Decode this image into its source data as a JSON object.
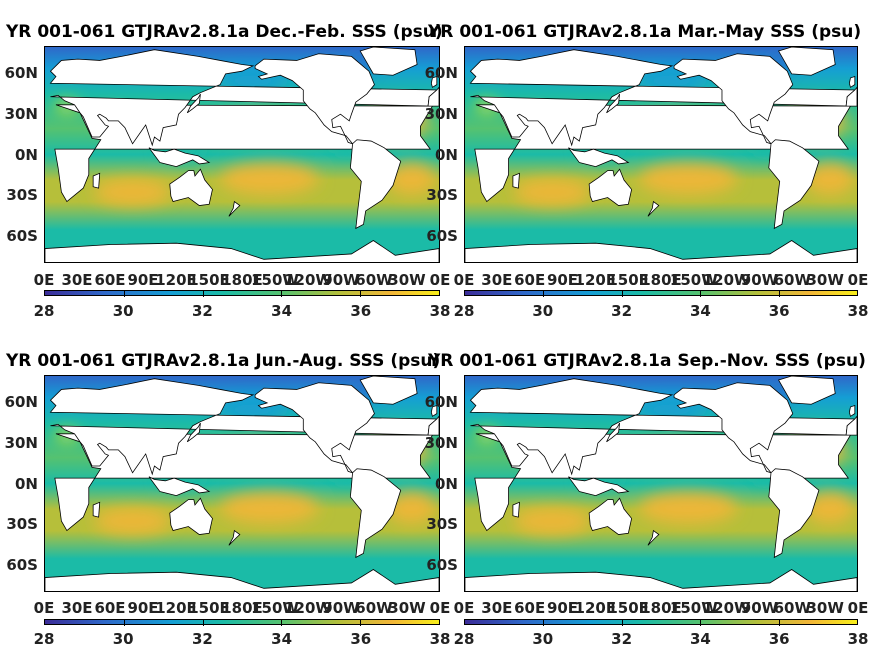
{
  "panels": [
    {
      "title": "YR 001-061 GTJRAv2.8.1a Dec.-Feb. SSS (psu)",
      "season": "djf"
    },
    {
      "title": "YR 001-061 GTJRAv2.8.1a Mar.-May SSS (psu)",
      "season": "mam"
    },
    {
      "title": "YR 001-061 GTJRAv2.8.1a Jun.-Aug. SSS (psu)",
      "season": "jja"
    },
    {
      "title": "YR 001-061 GTJRAv2.8.1a Sep.-Nov. SSS (psu)",
      "season": "son"
    }
  ],
  "lat_ticks": [
    "60N",
    "30N",
    "0N",
    "30S",
    "60S"
  ],
  "lon_ticks": [
    "0E",
    "30E",
    "60E",
    "90E",
    "120E",
    "150E",
    "180E",
    "150W",
    "120W",
    "90W",
    "60W",
    "30W",
    "0E"
  ],
  "colorbar": {
    "ticks": [
      "28",
      "30",
      "32",
      "34",
      "36",
      "38"
    ],
    "range": [
      28,
      38
    ],
    "colors": [
      "#3b2c98",
      "#2f68c9",
      "#159ed4",
      "#1bbba7",
      "#55c270",
      "#b6bf3a",
      "#f2b638",
      "#f8ee1a"
    ]
  }
}
